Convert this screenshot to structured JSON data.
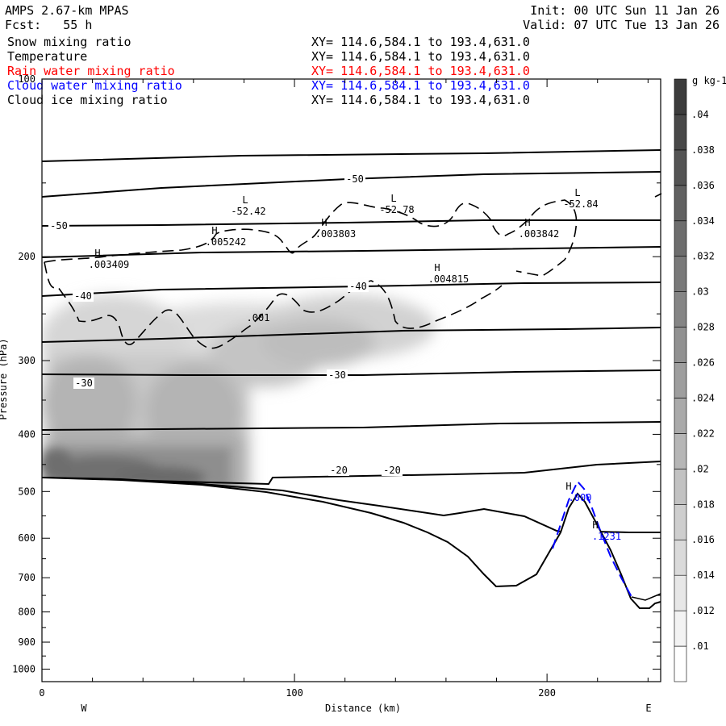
{
  "header": {
    "model": "AMPS 2.67-km MPAS",
    "forecast": "Fcst:   55 h",
    "init": "Init: 00 UTC Sun 11 Jan 26",
    "valid": "Valid: 07 UTC Tue 13 Jan 26"
  },
  "fields": [
    {
      "name": "Snow mixing ratio",
      "xy": "XY= 114.6,584.1 to 193.4,631.0",
      "color": "#000000"
    },
    {
      "name": "Temperature",
      "xy": "XY= 114.6,584.1 to 193.4,631.0",
      "color": "#000000"
    },
    {
      "name": "Rain water mixing ratio",
      "xy": "XY= 114.6,584.1 to 193.4,631.0",
      "color": "#ff0000"
    },
    {
      "name": "Cloud water mixing ratio",
      "xy": "XY= 114.6,584.1 to 193.4,631.0",
      "color": "#0000ff"
    },
    {
      "name": "Cloud ice mixing ratio",
      "xy": "XY= 114.6,584.1 to 193.4,631.0",
      "color": "#000000"
    }
  ],
  "chart_data": {
    "type": "heatmap",
    "xlabel": "Distance (km)",
    "ylabel": "Pressure (hPa)",
    "xlim": [
      0,
      245
    ],
    "ylim": [
      1050,
      100
    ],
    "y_scale": "log",
    "x_ticks": [
      "0",
      "100",
      "200"
    ],
    "y_ticks": [
      "100",
      "200",
      "300",
      "400",
      "500",
      "600",
      "700",
      "800",
      "900",
      "1000"
    ],
    "x_end_labels": {
      "left": "W",
      "right": "E"
    },
    "colorbar": {
      "unit": "g kg-1",
      "labels": [
        ".01",
        ".012",
        ".014",
        ".016",
        ".018",
        ".02",
        ".022",
        ".024",
        ".026",
        ".028",
        ".03",
        ".032",
        ".034",
        ".036",
        ".038",
        ".04"
      ]
    },
    "temperature_labels": [
      "-50",
      "-50",
      "-40",
      "-40",
      "-30",
      "-30",
      "-20",
      "-20"
    ],
    "extrema_labels": [
      {
        "sym": "L",
        "val": "-52.42"
      },
      {
        "sym": "L",
        "val": "-52.78"
      },
      {
        "sym": "L",
        "val": "-52.84"
      },
      {
        "sym": "H",
        "val": ".005242"
      },
      {
        "sym": "H",
        "val": ".003803"
      },
      {
        "sym": "H",
        "val": ".003842"
      },
      {
        "sym": "H",
        "val": ".003409"
      },
      {
        "sym": "H",
        "val": ".004815"
      },
      {
        "sym": "H",
        "val": ".000"
      },
      {
        "sym": "H",
        "val": ".1231"
      }
    ],
    "cloud_ice_label": ".001"
  }
}
